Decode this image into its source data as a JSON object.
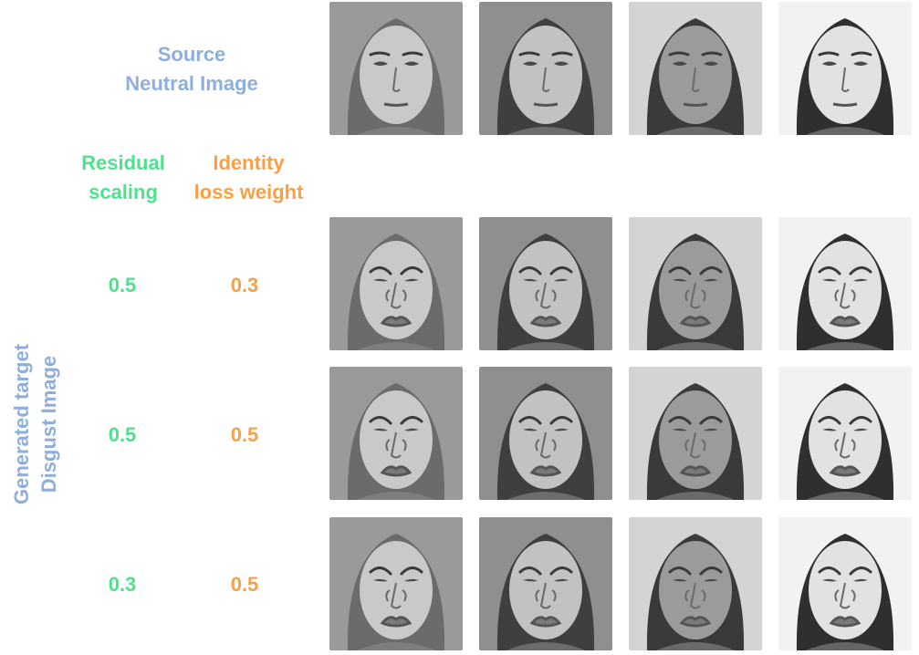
{
  "header": {
    "source_label_line1": "Source",
    "source_label_line2": "Neutral Image",
    "residual_line1": "Residual",
    "residual_line2": "scaling",
    "identity_line1": "Identity",
    "identity_line2": "loss weight",
    "vertical_line1": "Generated target",
    "vertical_line2": "Disgust Image"
  },
  "colors": {
    "blue_label": "#8eaedb",
    "residual_green": "#4fe28c",
    "identity_orange": "#f7a04a"
  },
  "rows": [
    {
      "residual": "0.5",
      "identity": "0.3"
    },
    {
      "residual": "0.5",
      "identity": "0.5"
    },
    {
      "residual": "0.3",
      "identity": "0.5"
    }
  ],
  "subjects": [
    {
      "name": "subject-1",
      "skin": "#c9c9c9",
      "hair": "#6b6b6b",
      "bg": "#9a9a9a",
      "tone": "light-long-hair"
    },
    {
      "name": "subject-2",
      "skin": "#c2c2c2",
      "hair": "#3f3f3f",
      "bg": "#8f8f8f",
      "tone": "dark-long-hair"
    },
    {
      "name": "subject-3",
      "skin": "#9b9b9b",
      "hair": "#3a3a3a",
      "bg": "#d4d4d4",
      "tone": "short-hair"
    },
    {
      "name": "subject-4",
      "skin": "#e2e2e2",
      "hair": "#2f2f2f",
      "bg": "#f2f2f2",
      "tone": "dark-short-hair"
    }
  ]
}
